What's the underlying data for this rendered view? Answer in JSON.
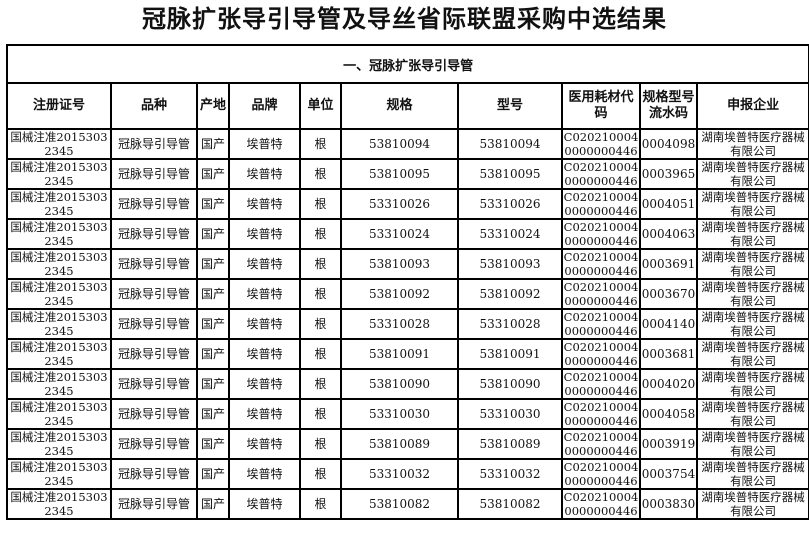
{
  "title": "冠脉扩张导引导管及导丝省际联盟采购中选结果",
  "section": "一、冠脉扩张导引导管",
  "headers": [
    "注册证号",
    "品种",
    "产地",
    "品牌",
    "单位",
    "规格",
    "型号",
    "医用耗材代码",
    "规格型号流水码",
    "申报企业"
  ],
  "rows": [
    [
      "国械注准20153032345",
      "冠脉导引导管",
      "国产",
      "埃普特",
      "根",
      "53810094",
      "53810094",
      "C0202100040000000446",
      "0004098",
      "湖南埃普特医疗器械有限公司"
    ],
    [
      "国械注准20153032345",
      "冠脉导引导管",
      "国产",
      "埃普特",
      "根",
      "53810095",
      "53810095",
      "C0202100040000000446",
      "0003965",
      "湖南埃普特医疗器械有限公司"
    ],
    [
      "国械注准20153032345",
      "冠脉导引导管",
      "国产",
      "埃普特",
      "根",
      "53310026",
      "53310026",
      "C0202100040000000446",
      "0004051",
      "湖南埃普特医疗器械有限公司"
    ],
    [
      "国械注准20153032345",
      "冠脉导引导管",
      "国产",
      "埃普特",
      "根",
      "53310024",
      "53310024",
      "C0202100040000000446",
      "0004063",
      "湖南埃普特医疗器械有限公司"
    ],
    [
      "国械注准20153032345",
      "冠脉导引导管",
      "国产",
      "埃普特",
      "根",
      "53810093",
      "53810093",
      "C0202100040000000446",
      "0003691",
      "湖南埃普特医疗器械有限公司"
    ],
    [
      "国械注准20153032345",
      "冠脉导引导管",
      "国产",
      "埃普特",
      "根",
      "53810092",
      "53810092",
      "C0202100040000000446",
      "0003670",
      "湖南埃普特医疗器械有限公司"
    ],
    [
      "国械注准20153032345",
      "冠脉导引导管",
      "国产",
      "埃普特",
      "根",
      "53310028",
      "53310028",
      "C0202100040000000446",
      "0004140",
      "湖南埃普特医疗器械有限公司"
    ],
    [
      "国械注准20153032345",
      "冠脉导引导管",
      "国产",
      "埃普特",
      "根",
      "53810091",
      "53810091",
      "C0202100040000000446",
      "0003681",
      "湖南埃普特医疗器械有限公司"
    ],
    [
      "国械注准20153032345",
      "冠脉导引导管",
      "国产",
      "埃普特",
      "根",
      "53810090",
      "53810090",
      "C0202100040000000446",
      "0004020",
      "湖南埃普特医疗器械有限公司"
    ],
    [
      "国械注准20153032345",
      "冠脉导引导管",
      "国产",
      "埃普特",
      "根",
      "53310030",
      "53310030",
      "C0202100040000000446",
      "0004058",
      "湖南埃普特医疗器械有限公司"
    ],
    [
      "国械注准20153032345",
      "冠脉导引导管",
      "国产",
      "埃普特",
      "根",
      "53810089",
      "53810089",
      "C0202100040000000446",
      "0003919",
      "湖南埃普特医疗器械有限公司"
    ],
    [
      "国械注准20153032345",
      "冠脉导引导管",
      "国产",
      "埃普特",
      "根",
      "53310032",
      "53310032",
      "C0202100040000000446",
      "0003754",
      "湖南埃普特医疗器械有限公司"
    ],
    [
      "国械注准20153032345",
      "冠脉导引导管",
      "国产",
      "埃普特",
      "根",
      "53810082",
      "53810082",
      "C0202100040000000446",
      "0003830",
      "湖南埃普特医疗器械有限公司"
    ]
  ]
}
